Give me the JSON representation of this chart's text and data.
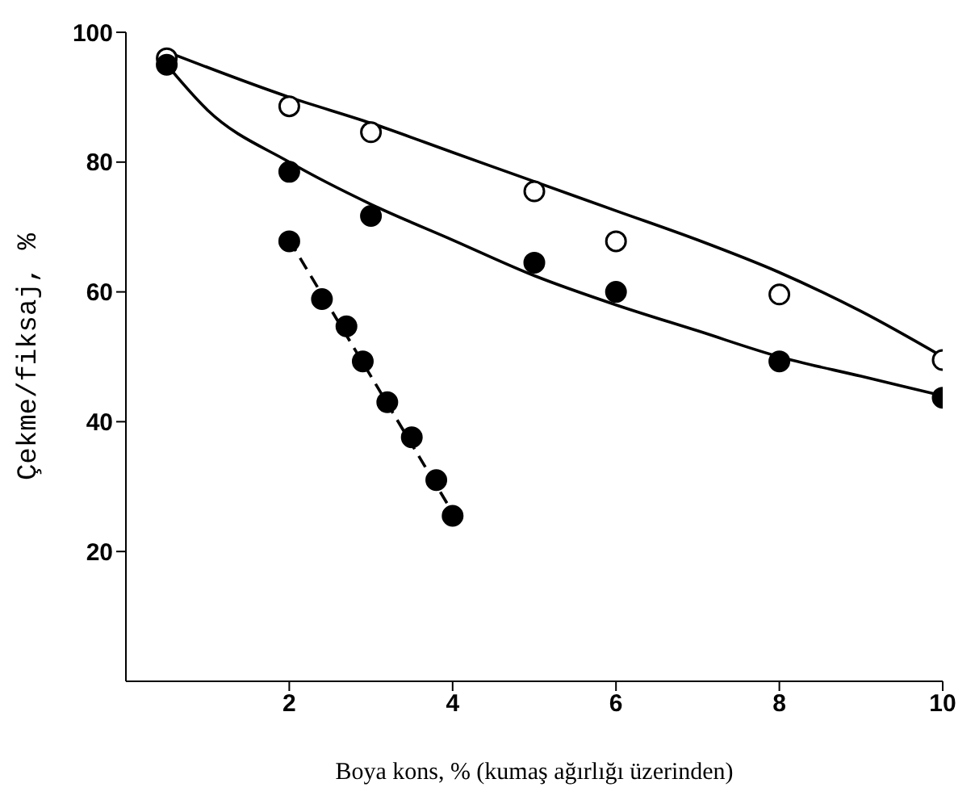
{
  "chart_data": {
    "type": "scatter",
    "xlabel": "Boya kons, % (kumaş ağırlığı üzerinden)",
    "ylabel": "Çekme/fiksaj, %",
    "xlim": [
      0,
      10
    ],
    "ylim": [
      0,
      100
    ],
    "xticks": [
      2,
      4,
      6,
      8,
      10
    ],
    "yticks": [
      20,
      40,
      60,
      80,
      100
    ],
    "grid": false,
    "marker": "circle",
    "series": [
      {
        "type": "line",
        "marker": "none",
        "color": "#000000",
        "line_style": "solid",
        "x": [
          0.5,
          2,
          3,
          4,
          5,
          6,
          7,
          8,
          9,
          10
        ],
        "values": [
          97,
          90,
          86,
          81.5,
          77,
          72.5,
          68,
          63,
          57,
          50
        ]
      },
      {
        "type": "line",
        "marker": "none",
        "color": "#000000",
        "line_style": "solid",
        "x": [
          0.5,
          1,
          2,
          3,
          4,
          5,
          6,
          7,
          8,
          9,
          10
        ],
        "values": [
          95,
          88,
          80,
          73.5,
          68,
          62.5,
          58,
          54,
          50,
          47,
          44
        ]
      },
      {
        "type": "line",
        "marker": "none",
        "color": "#000000",
        "line_style": "dashed",
        "x": [
          2,
          4
        ],
        "values": [
          68,
          26
        ]
      },
      {
        "color": "#ffffff",
        "x": [
          0.5,
          2,
          3,
          5,
          6,
          8,
          10
        ],
        "values": [
          96,
          88.6,
          84.6,
          75.5,
          67.8,
          59.6,
          49.5
        ]
      },
      {
        "color": "#000000",
        "x": [
          0.5,
          2,
          3,
          5,
          6,
          8,
          10
        ],
        "values": [
          95,
          78.5,
          71.7,
          64.5,
          60,
          49.3,
          43.7
        ]
      },
      {
        "color": "#000000",
        "x": [
          2,
          2.4,
          2.7,
          2.9,
          3.2,
          3.5,
          3.8,
          4
        ],
        "values": [
          67.8,
          58.9,
          54.7,
          49.3,
          43,
          37.6,
          31,
          25.5
        ]
      }
    ]
  }
}
